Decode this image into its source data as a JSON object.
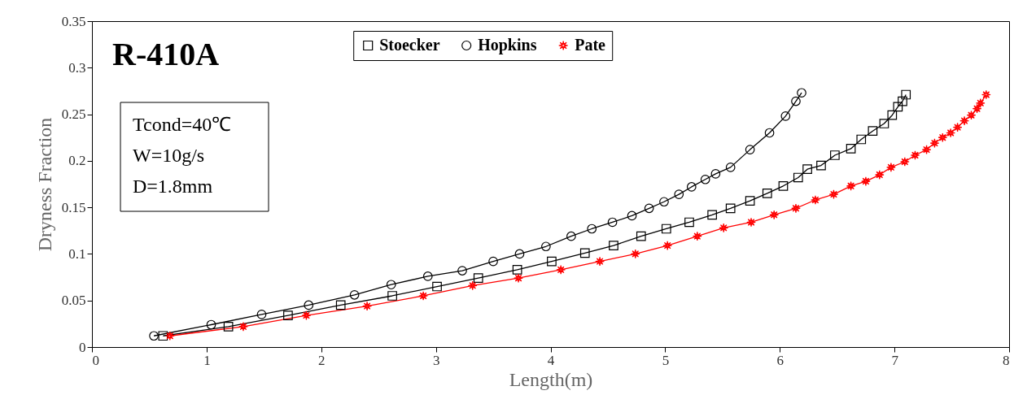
{
  "chart_data": {
    "type": "line",
    "xlabel": "Length(m)",
    "ylabel": "Dryness Fraction",
    "xlim": [
      0,
      8
    ],
    "ylim": [
      0,
      0.35
    ],
    "xticks": [
      0,
      1,
      2,
      3,
      4,
      5,
      6,
      7,
      8
    ],
    "yticks": [
      0,
      0.05,
      0.1,
      0.15,
      0.2,
      0.25,
      0.3,
      0.35
    ],
    "legend": "top",
    "grid": false,
    "annotations": [
      "R-410A",
      "Tcond=40℃",
      "W=10g/s",
      "D=1.8mm"
    ],
    "series": [
      {
        "name": "Stoecker",
        "color": "#000000",
        "marker": "square",
        "x": [
          0.62,
          1.19,
          1.71,
          2.17,
          2.62,
          3.01,
          3.37,
          3.71,
          4.01,
          4.3,
          4.55,
          4.79,
          5.01,
          5.21,
          5.41,
          5.57,
          5.74,
          5.89,
          6.03,
          6.16,
          6.24,
          6.36,
          6.48,
          6.62,
          6.71,
          6.81,
          6.91,
          6.98,
          7.03,
          7.07,
          7.1
        ],
        "values": [
          0.012,
          0.022,
          0.034,
          0.045,
          0.055,
          0.065,
          0.074,
          0.083,
          0.092,
          0.101,
          0.109,
          0.119,
          0.127,
          0.134,
          0.142,
          0.149,
          0.157,
          0.165,
          0.173,
          0.182,
          0.191,
          0.195,
          0.206,
          0.213,
          0.223,
          0.232,
          0.24,
          0.249,
          0.258,
          0.264,
          0.271
        ]
      },
      {
        "name": "Hopkins",
        "color": "#000000",
        "marker": "circle",
        "x": [
          0.54,
          1.04,
          1.48,
          1.89,
          2.29,
          2.61,
          2.93,
          3.23,
          3.5,
          3.73,
          3.96,
          4.18,
          4.36,
          4.54,
          4.71,
          4.86,
          4.99,
          5.12,
          5.23,
          5.35,
          5.44,
          5.57,
          5.74,
          5.91,
          6.05,
          6.14,
          6.19
        ],
        "values": [
          0.012,
          0.024,
          0.035,
          0.045,
          0.056,
          0.067,
          0.076,
          0.082,
          0.092,
          0.1,
          0.108,
          0.119,
          0.127,
          0.134,
          0.141,
          0.149,
          0.156,
          0.164,
          0.172,
          0.18,
          0.186,
          0.193,
          0.212,
          0.23,
          0.248,
          0.264,
          0.273
        ]
      },
      {
        "name": "Pate",
        "color": "#ff0000",
        "marker": "star",
        "x": [
          0.68,
          1.32,
          1.87,
          2.4,
          2.89,
          3.32,
          3.72,
          4.09,
          4.43,
          4.74,
          5.02,
          5.28,
          5.51,
          5.75,
          5.95,
          6.14,
          6.31,
          6.47,
          6.62,
          6.75,
          6.87,
          6.97,
          7.09,
          7.18,
          7.28,
          7.35,
          7.42,
          7.49,
          7.55,
          7.61,
          7.67,
          7.72,
          7.75,
          7.8
        ],
        "values": [
          0.012,
          0.022,
          0.034,
          0.044,
          0.055,
          0.066,
          0.074,
          0.083,
          0.092,
          0.1,
          0.109,
          0.119,
          0.128,
          0.134,
          0.142,
          0.149,
          0.158,
          0.164,
          0.173,
          0.178,
          0.185,
          0.193,
          0.199,
          0.206,
          0.212,
          0.219,
          0.225,
          0.23,
          0.236,
          0.243,
          0.249,
          0.256,
          0.262,
          0.271
        ]
      }
    ]
  }
}
